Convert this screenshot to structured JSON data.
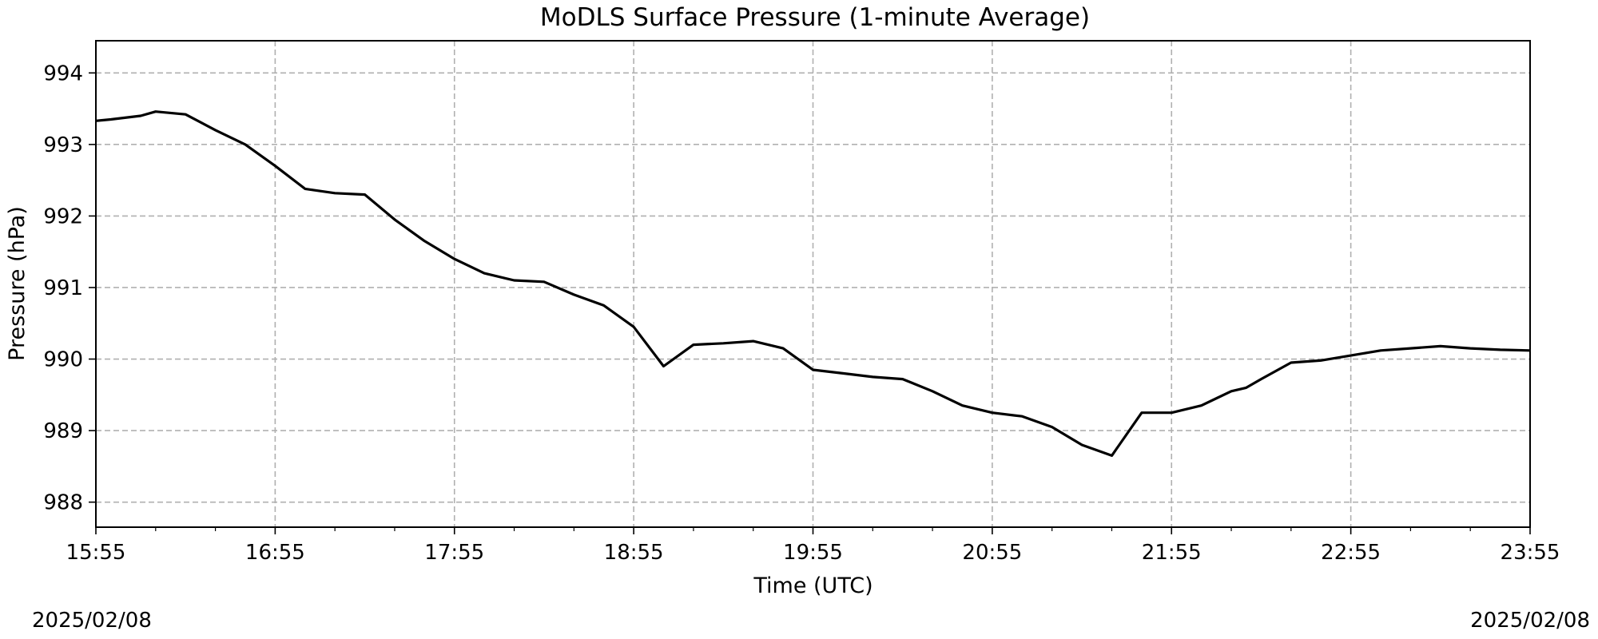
{
  "chart_data": {
    "type": "line",
    "title": "MoDLS Surface Pressure (1-minute Average)",
    "xlabel": "Time (UTC)",
    "ylabel": "Pressure (hPa)",
    "x_ticks": [
      "15:55",
      "16:55",
      "17:55",
      "18:55",
      "19:55",
      "20:55",
      "21:55",
      "22:55",
      "23:55"
    ],
    "y_ticks": [
      988,
      989,
      990,
      991,
      992,
      993,
      994
    ],
    "ylim": [
      987.65,
      994.45
    ],
    "xlim": [
      "15:55",
      "23:55"
    ],
    "grid": true,
    "grid_style": "dashed",
    "line_color": "#000000",
    "series": [
      {
        "x": [
          "15:55",
          "16:00",
          "16:10",
          "16:15",
          "16:25",
          "16:35",
          "16:45",
          "16:55",
          "17:05",
          "17:15",
          "17:25",
          "17:35",
          "17:45",
          "17:55",
          "18:05",
          "18:15",
          "18:25",
          "18:35",
          "18:45",
          "18:55",
          "19:05",
          "19:15",
          "19:25",
          "19:35",
          "19:45",
          "19:55",
          "20:05",
          "20:15",
          "20:25",
          "20:35",
          "20:45",
          "20:55",
          "21:05",
          "21:15",
          "21:25",
          "21:35",
          "21:45",
          "21:55",
          "22:05",
          "22:15",
          "22:20",
          "22:25",
          "22:35",
          "22:45",
          "22:55",
          "23:05",
          "23:15",
          "23:25",
          "23:35",
          "23:45",
          "23:55"
        ],
        "y": [
          993.33,
          993.35,
          993.4,
          993.46,
          993.42,
          993.2,
          993.0,
          992.7,
          992.38,
          992.32,
          992.3,
          991.95,
          991.65,
          991.4,
          991.2,
          991.1,
          991.08,
          990.9,
          990.75,
          990.45,
          989.9,
          990.2,
          990.22,
          990.25,
          990.15,
          989.85,
          989.8,
          989.75,
          989.72,
          989.55,
          989.35,
          989.25,
          989.2,
          989.05,
          988.8,
          988.65,
          989.25,
          989.25,
          989.35,
          989.55,
          989.6,
          989.72,
          989.95,
          989.98,
          990.05,
          990.12,
          990.15,
          990.18,
          990.15,
          990.13,
          990.12
        ]
      }
    ]
  },
  "dates": {
    "left": "2025/02/08",
    "right": "2025/02/08"
  }
}
